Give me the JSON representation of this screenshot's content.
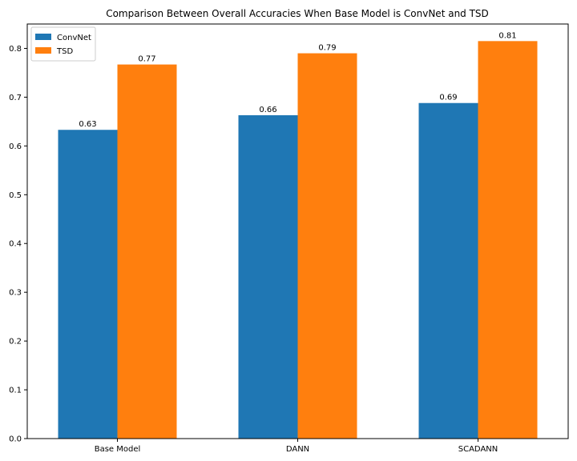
{
  "chart_data": {
    "type": "bar",
    "title": "Comparison Between Overall Accuracies When Base Model is ConvNet and TSD",
    "xlabel": "",
    "ylabel": "",
    "categories": [
      "Base Model",
      "DANN",
      "SCADANN"
    ],
    "series": [
      {
        "name": "ConvNet",
        "color": "#1f77b4",
        "values": [
          0.633,
          0.663,
          0.688
        ],
        "labels": [
          "0.63",
          "0.66",
          "0.69"
        ]
      },
      {
        "name": "TSD",
        "color": "#ff7f0e",
        "values": [
          0.767,
          0.79,
          0.815
        ],
        "labels": [
          "0.77",
          "0.79",
          "0.81"
        ]
      }
    ],
    "ylim": [
      0,
      0.85
    ],
    "yticks": [
      {
        "value": 0.0,
        "label": "0.0"
      },
      {
        "value": 0.1,
        "label": "0.1"
      },
      {
        "value": 0.2,
        "label": "0.2"
      },
      {
        "value": 0.3,
        "label": "0.3"
      },
      {
        "value": 0.4,
        "label": "0.4"
      },
      {
        "value": 0.5,
        "label": "0.5"
      },
      {
        "value": 0.6,
        "label": "0.6"
      },
      {
        "value": 0.7,
        "label": "0.7"
      },
      {
        "value": 0.8,
        "label": "0.8"
      }
    ],
    "grid": false,
    "legend": "top-left"
  }
}
